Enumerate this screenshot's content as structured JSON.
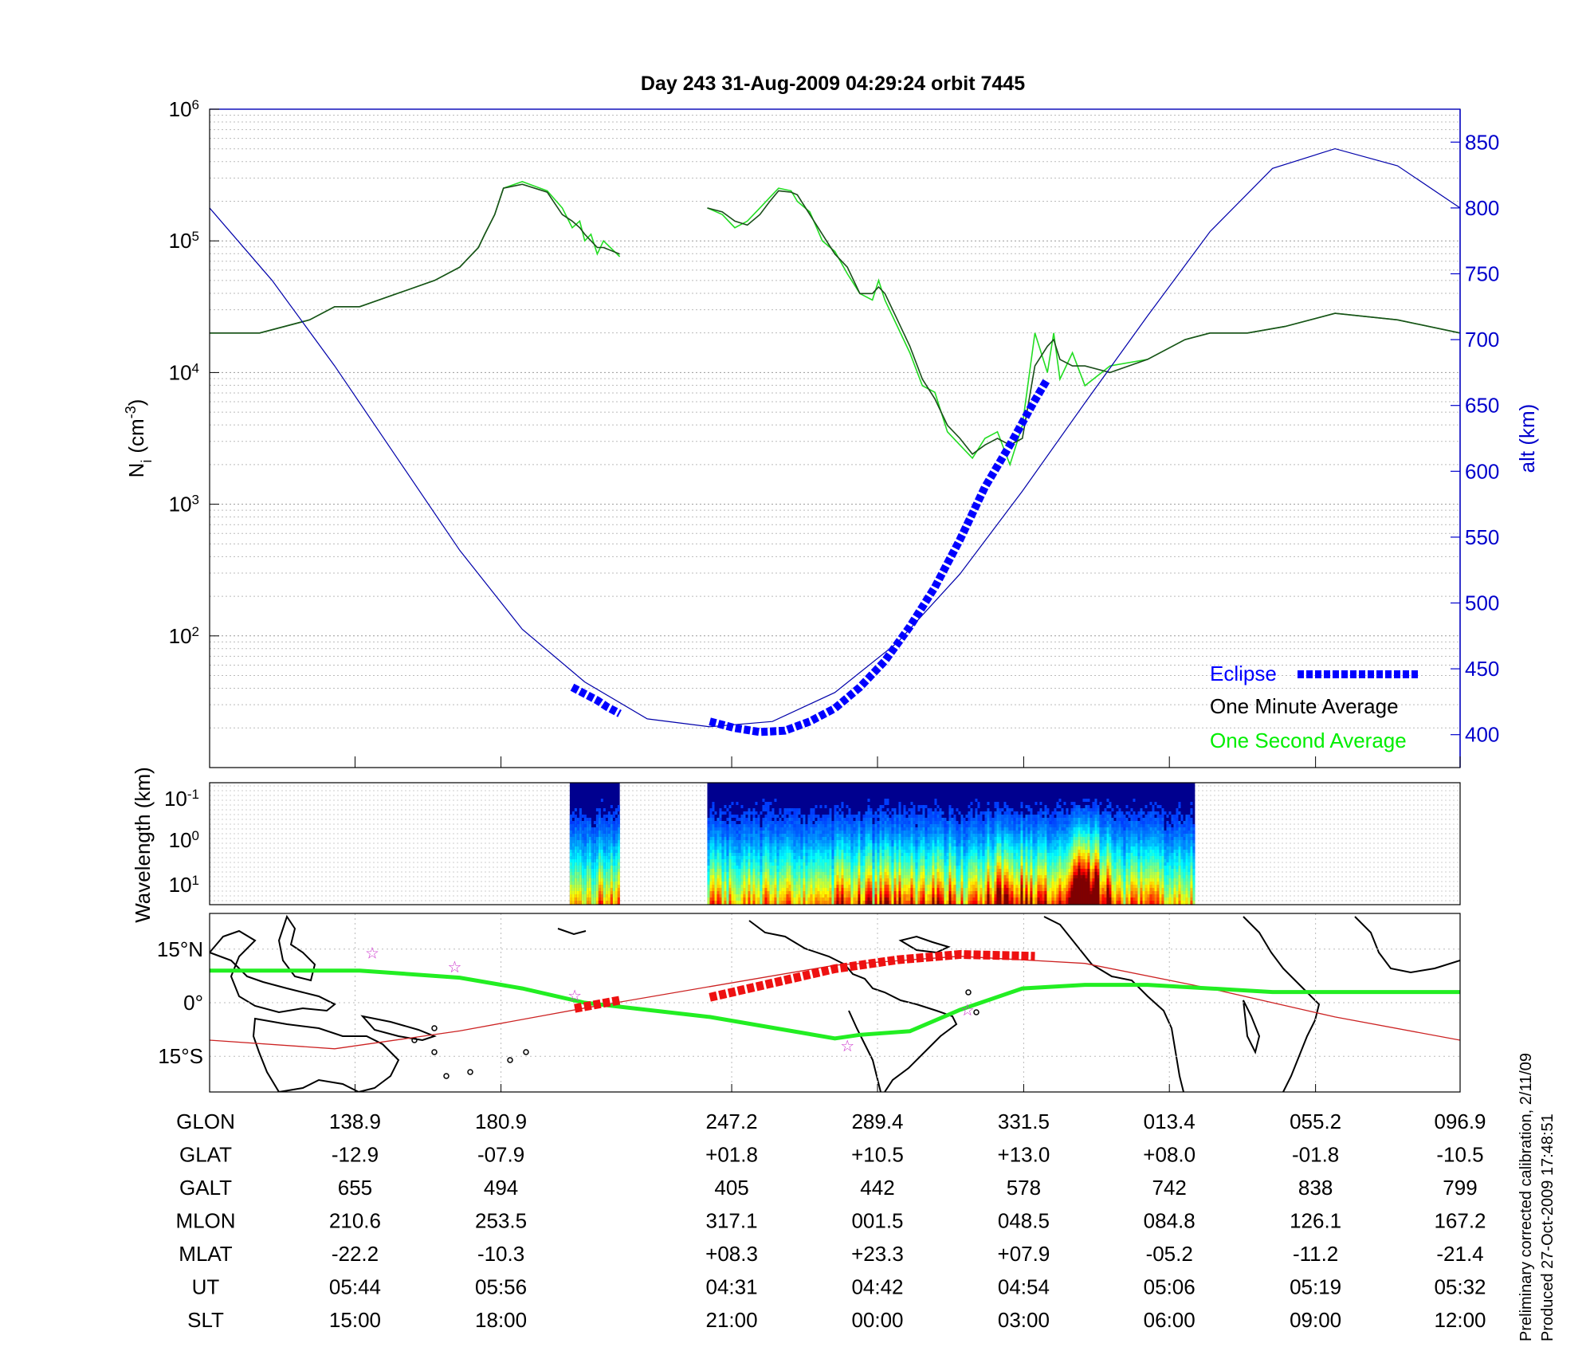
{
  "chart_data": [
    {
      "type": "line",
      "panel": "density",
      "title": "Day 243  31-Aug-2009 04:29:24   orbit 7445",
      "ylabel_left": "N",
      "ylabel_left_sub": "i",
      "ylabel_left_unit_pre": "(cm",
      "ylabel_left_unit_sup": "-3",
      "ylabel_left_unit_post": ")",
      "ylabel_right": "alt (km)",
      "yscale_left": "log",
      "ylim_left_exp": [
        1,
        6
      ],
      "yticks_left": [
        {
          "base": "10",
          "exp": "6",
          "value": 6
        },
        {
          "base": "10",
          "exp": "5",
          "value": 5
        },
        {
          "base": "10",
          "exp": "4",
          "value": 4
        },
        {
          "base": "10",
          "exp": "3",
          "value": 3
        },
        {
          "base": "10",
          "exp": "2",
          "value": 2
        }
      ],
      "ylim_right": [
        375,
        875
      ],
      "yticks_right": [
        "850",
        "800",
        "750",
        "700",
        "650",
        "600",
        "550",
        "500",
        "450",
        "400"
      ],
      "xlim": [
        0,
        1
      ],
      "grid": true,
      "legend_position": "bottom-right",
      "legend": [
        {
          "label": "Eclipse",
          "color": "#0000ff"
        },
        {
          "label": "One Minute Average",
          "color": "#000000"
        },
        {
          "label": "One Second Average",
          "color": "#00ff00"
        }
      ],
      "series": [
        {
          "name": "One Minute Average",
          "color": "#1a4d1a",
          "segments": [
            {
              "x": [
                0.0,
                0.04,
                0.08,
                0.1,
                0.12,
                0.15,
                0.18,
                0.2,
                0.215,
                0.22,
                0.228,
                0.235,
                0.25,
                0.27,
                0.282,
                0.29,
                0.296,
                0.3,
                0.305,
                0.31,
                0.315,
                0.328
              ],
              "y": [
                4.3,
                4.3,
                4.4,
                4.5,
                4.5,
                4.6,
                4.7,
                4.8,
                4.95,
                5.05,
                5.2,
                5.4,
                5.43,
                5.37,
                5.2,
                5.15,
                5.1,
                5.05,
                5.0,
                4.95,
                4.95,
                4.9
              ]
            },
            {
              "x": [
                0.398,
                0.41,
                0.42,
                0.43,
                0.44,
                0.448,
                0.455,
                0.465,
                0.47,
                0.48,
                0.49,
                0.5,
                0.51,
                0.52,
                0.53,
                0.535,
                0.54,
                0.55,
                0.56,
                0.57,
                0.58,
                0.59,
                0.6,
                0.61,
                0.62,
                0.63,
                0.64,
                0.65,
                0.66,
                0.67,
                0.675,
                0.68,
                0.69,
                0.7,
                0.72,
                0.75,
                0.78,
                0.8,
                0.83,
                0.86,
                0.9,
                0.95,
                1.0
              ],
              "y": [
                5.25,
                5.22,
                5.15,
                5.12,
                5.2,
                5.3,
                5.38,
                5.37,
                5.35,
                5.2,
                5.05,
                4.9,
                4.8,
                4.6,
                4.6,
                4.65,
                4.6,
                4.4,
                4.2,
                3.95,
                3.8,
                3.6,
                3.5,
                3.38,
                3.45,
                3.5,
                3.45,
                3.5,
                4.05,
                4.2,
                4.25,
                4.1,
                4.05,
                4.05,
                4.0,
                4.1,
                4.25,
                4.3,
                4.3,
                4.35,
                4.45,
                4.4,
                4.3
              ]
            }
          ]
        },
        {
          "name": "One Second Average",
          "color": "#22dd22",
          "segments": [
            {
              "x": [
                0.0,
                0.04,
                0.08,
                0.1,
                0.12,
                0.15,
                0.18,
                0.2,
                0.215,
                0.22,
                0.228,
                0.235,
                0.25,
                0.27,
                0.282,
                0.29,
                0.296,
                0.3,
                0.305,
                0.31,
                0.315,
                0.328
              ],
              "y": [
                4.3,
                4.3,
                4.4,
                4.5,
                4.5,
                4.6,
                4.7,
                4.8,
                4.95,
                5.05,
                5.2,
                5.4,
                5.45,
                5.38,
                5.25,
                5.1,
                5.15,
                5.0,
                5.05,
                4.9,
                5.0,
                4.88
              ]
            },
            {
              "x": [
                0.398,
                0.41,
                0.42,
                0.43,
                0.44,
                0.448,
                0.455,
                0.465,
                0.47,
                0.48,
                0.49,
                0.5,
                0.51,
                0.52,
                0.53,
                0.535,
                0.54,
                0.55,
                0.56,
                0.57,
                0.58,
                0.59,
                0.6,
                0.61,
                0.62,
                0.63,
                0.64,
                0.65,
                0.66,
                0.67,
                0.675,
                0.68,
                0.69,
                0.7,
                0.72,
                0.75,
                0.78,
                0.8,
                0.83,
                0.86,
                0.9,
                0.95,
                1.0
              ],
              "y": [
                5.25,
                5.2,
                5.1,
                5.15,
                5.25,
                5.33,
                5.4,
                5.38,
                5.3,
                5.22,
                5.0,
                4.92,
                4.75,
                4.6,
                4.55,
                4.7,
                4.55,
                4.35,
                4.15,
                3.9,
                3.85,
                3.55,
                3.45,
                3.35,
                3.5,
                3.55,
                3.3,
                3.6,
                4.3,
                4.0,
                4.3,
                3.95,
                4.15,
                3.9,
                4.05,
                4.1,
                4.25,
                4.3,
                4.3,
                4.35,
                4.45,
                4.4,
                4.3
              ]
            }
          ]
        },
        {
          "name": "alt",
          "axis": "right",
          "color": "#0000aa",
          "x": [
            0.0,
            0.05,
            0.1,
            0.15,
            0.2,
            0.25,
            0.3,
            0.35,
            0.4,
            0.45,
            0.5,
            0.55,
            0.6,
            0.65,
            0.7,
            0.75,
            0.8,
            0.85,
            0.9,
            0.95,
            1.0
          ],
          "y": [
            800,
            745,
            680,
            610,
            540,
            480,
            440,
            412,
            406,
            410,
            432,
            470,
            522,
            585,
            652,
            718,
            782,
            830,
            845,
            832,
            800
          ]
        }
      ],
      "eclipse_segments": [
        {
          "x": [
            0.29,
            0.3,
            0.31,
            0.318,
            0.328
          ],
          "y": [
            436,
            431,
            426,
            421,
            416
          ]
        },
        {
          "x": [
            0.4,
            0.42,
            0.44,
            0.46,
            0.48,
            0.5,
            0.52,
            0.54,
            0.56,
            0.58,
            0.6,
            0.62,
            0.64,
            0.66,
            0.67
          ],
          "y": [
            410,
            405,
            402,
            403,
            410,
            420,
            436,
            456,
            482,
            512,
            548,
            588,
            620,
            654,
            670
          ]
        }
      ]
    },
    {
      "type": "heatmap",
      "panel": "spectrogram",
      "ylabel": "Wavelength (km)",
      "yscale": "log",
      "yticks": [
        {
          "base": "10",
          "exp": "-1"
        },
        {
          "base": "10",
          "exp": "0"
        },
        {
          "base": "10",
          "exp": "1"
        }
      ],
      "colormap": "jet",
      "data_x_ranges": [
        [
          0.288,
          0.328
        ],
        [
          0.398,
          0.788
        ]
      ],
      "hotspot_x": [
        0.69,
        0.71
      ]
    },
    {
      "type": "map",
      "panel": "ground-track",
      "yticks": [
        "15°N",
        "0°",
        "15°S"
      ],
      "ylim": [
        -25,
        25
      ],
      "track_color": "#cc2222",
      "equator_color": "#22ee22",
      "track": {
        "x": [
          0.0,
          0.1,
          0.2,
          0.3,
          0.4,
          0.5,
          0.6,
          0.7,
          0.8,
          0.9,
          1.0
        ],
        "y": [
          -10.5,
          -12.9,
          -7.9,
          -1.5,
          4.5,
          10.5,
          13.0,
          11.0,
          4.0,
          -4.0,
          -10.5
        ]
      },
      "magnetic_equator": {
        "x": [
          0.0,
          0.05,
          0.12,
          0.2,
          0.25,
          0.3,
          0.35,
          0.4,
          0.45,
          0.5,
          0.52,
          0.56,
          0.6,
          0.65,
          0.7,
          0.75,
          0.8,
          0.85,
          0.9,
          0.95,
          1.0
        ],
        "y": [
          9,
          9,
          9,
          7,
          4,
          0,
          -2,
          -4,
          -7,
          -10,
          -9,
          -8,
          -2,
          4,
          5,
          5,
          4,
          3,
          3,
          3,
          3
        ]
      },
      "eclipse_segments": [
        {
          "x": [
            0.292,
            0.328
          ],
          "y": [
            -1.6,
            0.7
          ]
        },
        {
          "x": [
            0.4,
            0.45,
            0.5,
            0.55,
            0.6,
            0.66
          ],
          "y": [
            1.5,
            5.5,
            9.5,
            12,
            13.5,
            13
          ]
        }
      ],
      "stars": [
        {
          "x": 0.13,
          "y": 14
        },
        {
          "x": 0.196,
          "y": 10
        },
        {
          "x": 0.292,
          "y": 2
        },
        {
          "x": 0.51,
          "y": -12
        },
        {
          "x": 0.606,
          "y": -2
        }
      ]
    }
  ],
  "ephemeris": {
    "rows": [
      {
        "label": "GLON",
        "values": [
          "138.9",
          "180.9",
          "247.2",
          "289.4",
          "331.5",
          "013.4",
          "055.2",
          "096.9"
        ]
      },
      {
        "label": "GLAT",
        "values": [
          "-12.9",
          "-07.9",
          "+01.8",
          "+10.5",
          "+13.0",
          "+08.0",
          "-01.8",
          "-10.5"
        ]
      },
      {
        "label": "GALT",
        "values": [
          "655",
          "494",
          "405",
          "442",
          "578",
          "742",
          "838",
          "799"
        ]
      },
      {
        "label": "MLON",
        "values": [
          "210.6",
          "253.5",
          "317.1",
          "001.5",
          "048.5",
          "084.8",
          "126.1",
          "167.2"
        ]
      },
      {
        "label": "MLAT",
        "values": [
          "-22.2",
          "-10.3",
          "+08.3",
          "+23.3",
          "+07.9",
          "-05.2",
          "-11.2",
          "-21.4"
        ]
      },
      {
        "label": "UT",
        "values": [
          "05:44",
          "05:56",
          "04:31",
          "04:42",
          "04:54",
          "05:06",
          "05:19",
          "05:32"
        ]
      },
      {
        "label": "SLT",
        "values": [
          "15:00",
          "18:00",
          "21:00",
          "00:00",
          "03:00",
          "06:00",
          "09:00",
          "12:00"
        ]
      }
    ]
  },
  "footer": {
    "calibration": "Preliminary corrected calibration, 2/11/09",
    "produced": "Produced 27-Oct-2009 17:48:51"
  }
}
